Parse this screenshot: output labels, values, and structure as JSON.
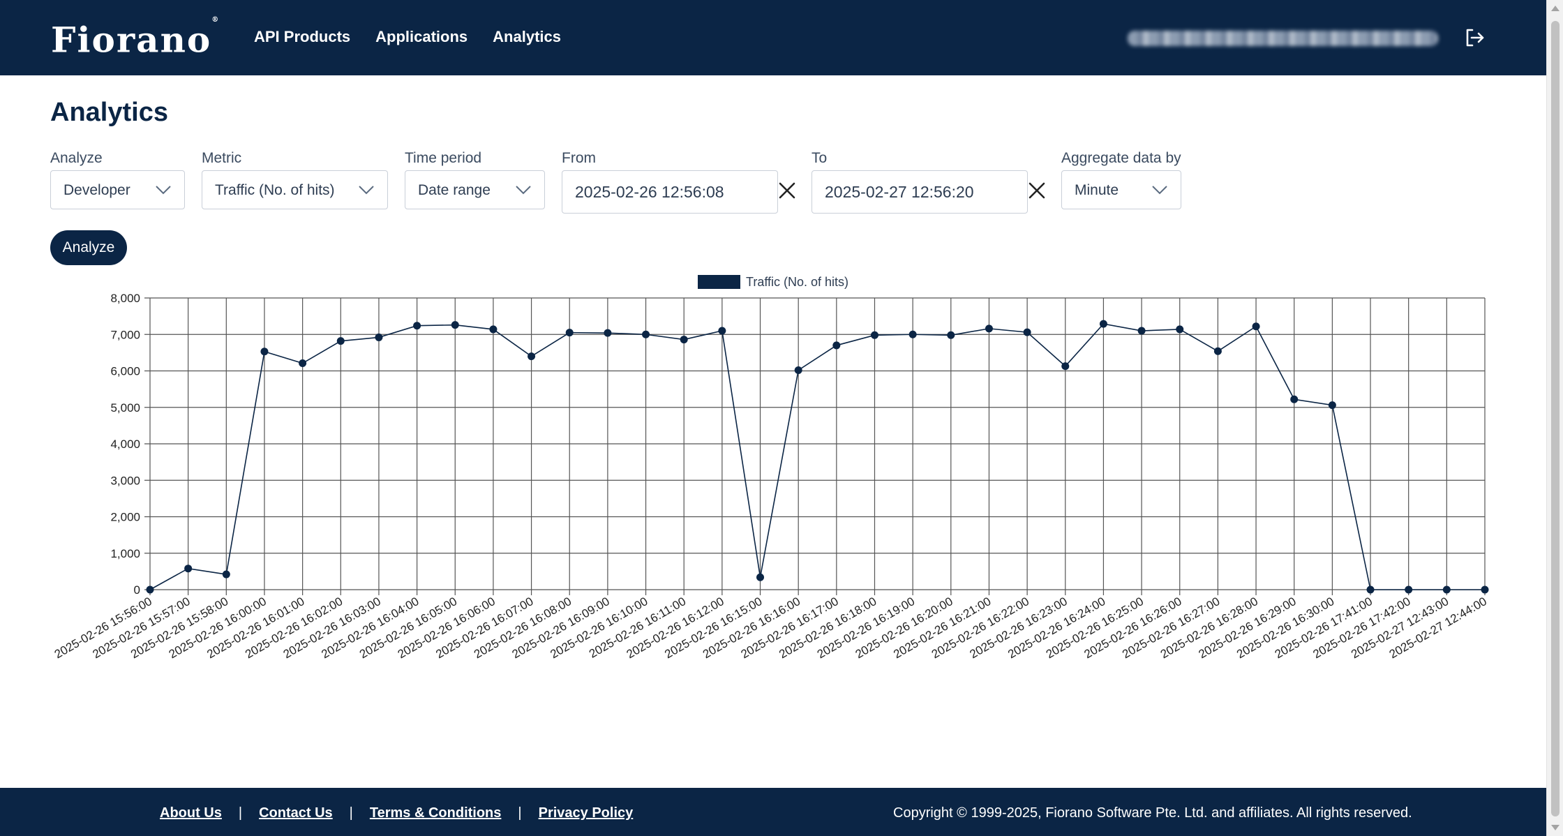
{
  "nav": {
    "logo": "Fiorano",
    "logo_mark": "®",
    "links": [
      "API Products",
      "Applications",
      "Analytics"
    ]
  },
  "page": {
    "title": "Analytics"
  },
  "filters": {
    "analyze": {
      "label": "Analyze",
      "value": "Developer"
    },
    "metric": {
      "label": "Metric",
      "value": "Traffic (No. of hits)"
    },
    "time_period": {
      "label": "Time period",
      "value": "Date range"
    },
    "from": {
      "label": "From",
      "value": "2025-02-26 12:56:08"
    },
    "to": {
      "label": "To",
      "value": "2025-02-27 12:56:20"
    },
    "aggregate": {
      "label": "Aggregate data by",
      "value": "Minute"
    },
    "analyze_button": "Analyze"
  },
  "chart_data": {
    "type": "line",
    "title": "",
    "xlabel": "",
    "ylabel": "",
    "legend": "top-center",
    "grid": true,
    "ylim": [
      0,
      8000
    ],
    "yticks": [
      0,
      1000,
      2000,
      3000,
      4000,
      5000,
      6000,
      7000,
      8000
    ],
    "color": "#0b2545",
    "x": [
      "2025-02-26 15:56:00",
      "2025-02-26 15:57:00",
      "2025-02-26 15:58:00",
      "2025-02-26 16:00:00",
      "2025-02-26 16:01:00",
      "2025-02-26 16:02:00",
      "2025-02-26 16:03:00",
      "2025-02-26 16:04:00",
      "2025-02-26 16:05:00",
      "2025-02-26 16:06:00",
      "2025-02-26 16:07:00",
      "2025-02-26 16:08:00",
      "2025-02-26 16:09:00",
      "2025-02-26 16:10:00",
      "2025-02-26 16:11:00",
      "2025-02-26 16:12:00",
      "2025-02-26 16:15:00",
      "2025-02-26 16:16:00",
      "2025-02-26 16:17:00",
      "2025-02-26 16:18:00",
      "2025-02-26 16:19:00",
      "2025-02-26 16:20:00",
      "2025-02-26 16:21:00",
      "2025-02-26 16:22:00",
      "2025-02-26 16:23:00",
      "2025-02-26 16:24:00",
      "2025-02-26 16:25:00",
      "2025-02-26 16:26:00",
      "2025-02-26 16:27:00",
      "2025-02-26 16:28:00",
      "2025-02-26 16:29:00",
      "2025-02-26 16:30:00",
      "2025-02-26 17:41:00",
      "2025-02-26 17:42:00",
      "2025-02-27 12:43:00",
      "2025-02-27 12:44:00"
    ],
    "series": [
      {
        "name": "Traffic (No. of hits)",
        "values": [
          0,
          580,
          420,
          6530,
          6210,
          6820,
          6920,
          7240,
          7260,
          7140,
          6400,
          7050,
          7040,
          7000,
          6860,
          7100,
          340,
          6020,
          6700,
          6980,
          7000,
          6980,
          7160,
          7060,
          6130,
          7290,
          7100,
          7140,
          6540,
          7220,
          5220,
          5060,
          0,
          0,
          0,
          0
        ]
      }
    ]
  },
  "footer": {
    "links": [
      "About Us",
      "Contact Us",
      "Terms & Conditions",
      "Privacy Policy"
    ],
    "separator": "|",
    "copyright": "Copyright © 1999-2025, Fiorano Software Pte. Ltd. and affiliates. All rights reserved."
  }
}
